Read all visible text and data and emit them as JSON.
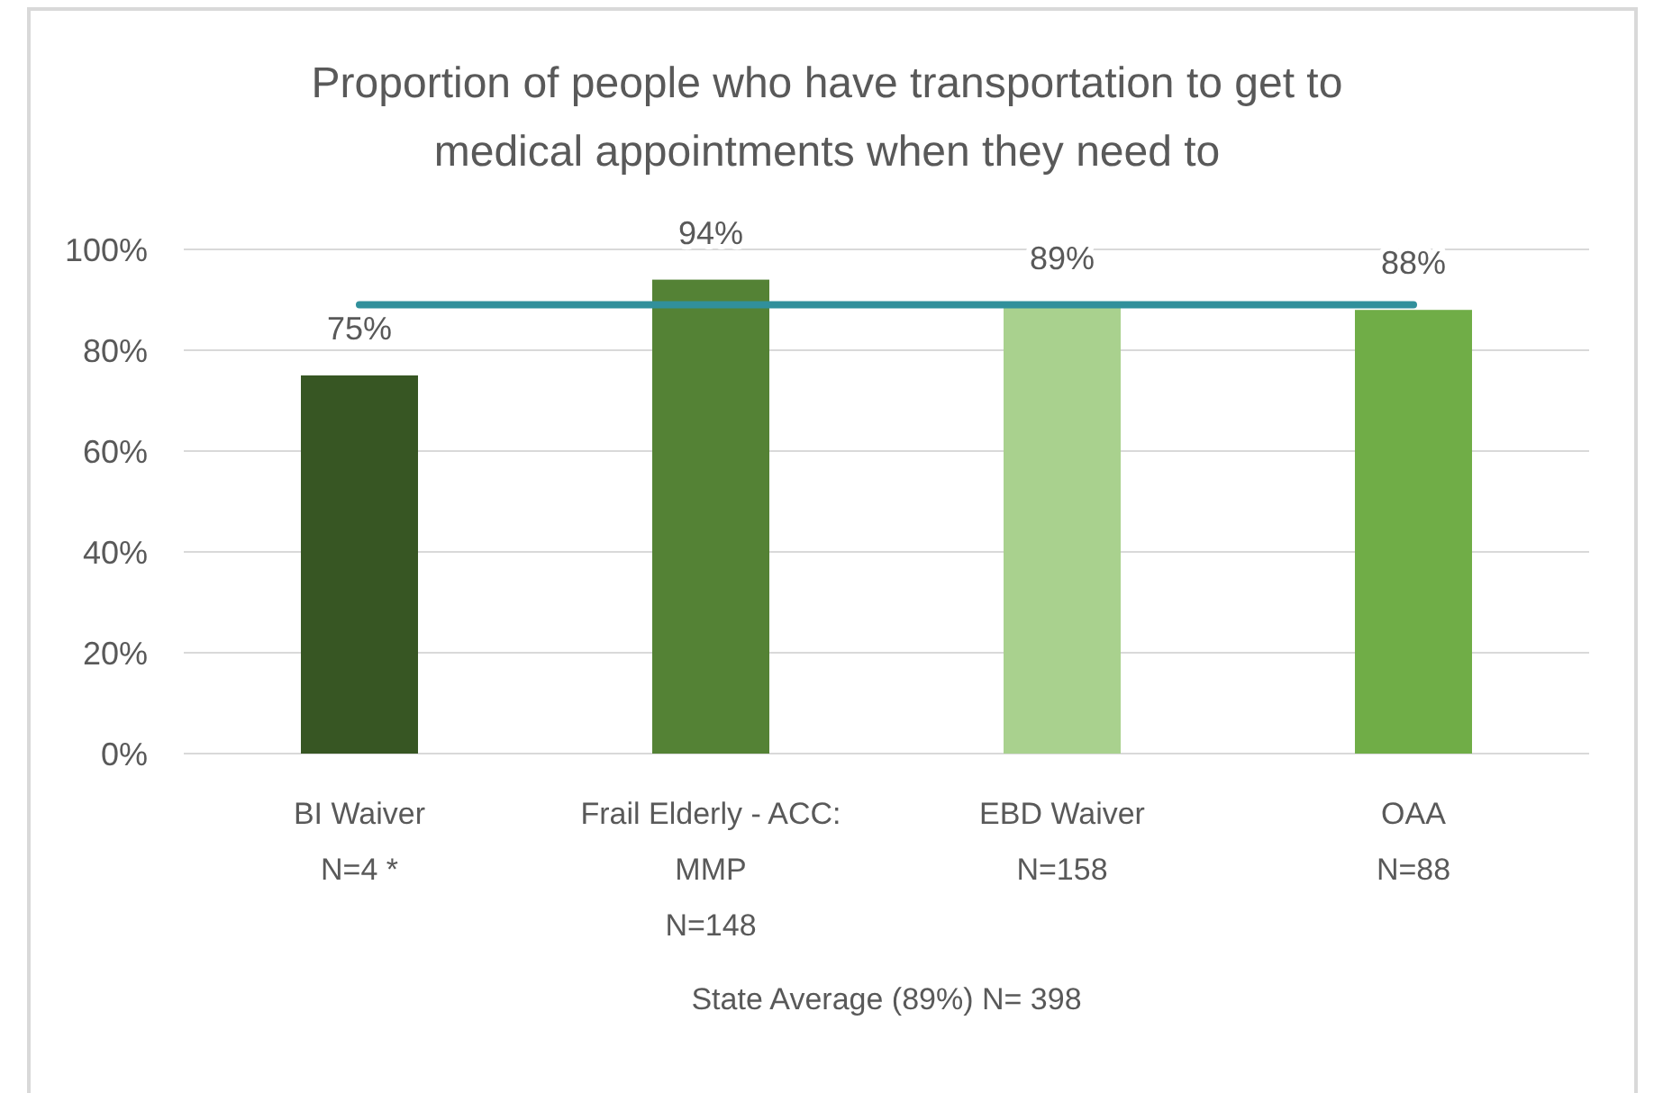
{
  "chart_data": {
    "type": "bar",
    "title": "Proportion of people who have transportation to get to medical appointments when they need to",
    "categories": [
      "BI Waiver\nN=4 *",
      "Frail Elderly - ACC:\nMMP\nN=148",
      "EBD Waiver\nN=158",
      "OAA\nN=88"
    ],
    "series": [
      {
        "colors": [
          "#375623",
          "#548235",
          "#a9d18e",
          "#70ad47"
        ],
        "values": [
          75,
          94,
          89,
          88
        ],
        "value_labels": [
          "75%",
          "94%",
          "89%",
          "88%"
        ]
      },
      {
        "type": "line",
        "name": "State Average (89%) N= 398",
        "color": "#31909b",
        "values": [
          89,
          89,
          89,
          89
        ]
      }
    ],
    "ylim": [
      0,
      100
    ],
    "yticks": [
      {
        "value": 0,
        "label": "0%"
      },
      {
        "value": 20,
        "label": "20%"
      },
      {
        "value": 40,
        "label": "40%"
      },
      {
        "value": 60,
        "label": "60%"
      },
      {
        "value": 80,
        "label": "80%"
      },
      {
        "value": 100,
        "label": "100%"
      }
    ],
    "grid": "y",
    "legend": "bottom"
  }
}
